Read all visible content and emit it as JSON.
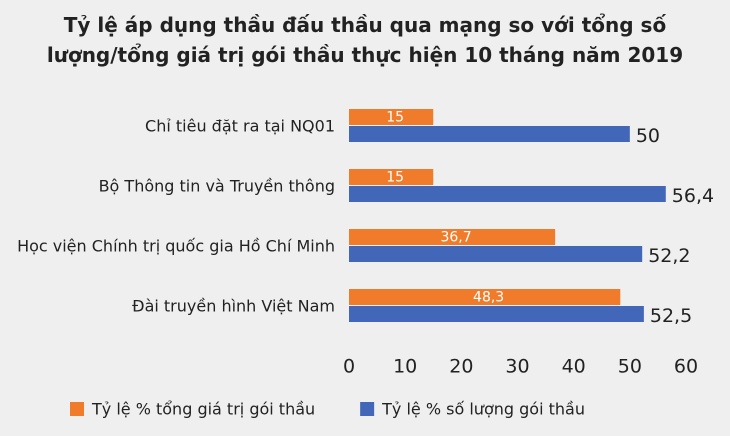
{
  "chart_data": {
    "type": "hbar",
    "title": "Tỷ lệ áp dụng thầu đấu thầu qua mạng so với tổng số lượng/tổng giá trị gói thầu thực hiện 10 tháng năm 2019",
    "categories": [
      "Chỉ tiêu đặt ra tại NQ01",
      "Bộ Thông tin và Truyền thông",
      "Học viện Chính trị quốc gia Hồ Chí Minh",
      "Đài truyền hình Việt Nam"
    ],
    "series": [
      {
        "name": "Tỷ lệ % tổng giá trị gói thầu",
        "color": "#f07c2b",
        "values": [
          15,
          15,
          36.7,
          48.3
        ],
        "value_labels": [
          "15",
          "15",
          "36,7",
          "48,3"
        ]
      },
      {
        "name": "Tỷ lệ % số lượng gói thầu",
        "color": "#4267b8",
        "values": [
          50,
          56.4,
          52.2,
          52.5
        ],
        "value_labels": [
          "50",
          "56,4",
          "52,2",
          "52,5"
        ]
      }
    ],
    "xlim": [
      0,
      60
    ],
    "xticks": [
      0,
      10,
      20,
      30,
      40,
      50,
      60
    ],
    "grid": false
  }
}
